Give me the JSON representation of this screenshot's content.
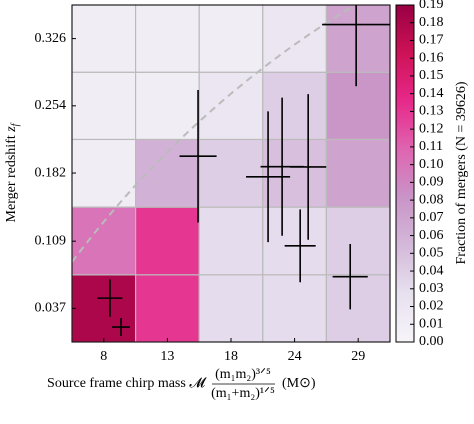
{
  "chart_data": {
    "type": "heatmap",
    "xlabel": "Source frame chirp mass 𝓜",
    "xlabel_numerator": "(m₁m₂)³ᐟ⁵",
    "xlabel_denominator": "(m₁+m₂)¹ᐟ⁵",
    "xlabel_unit": "(M⊙)",
    "ylabel": "Merger redshift",
    "ylabel_symbol": "z",
    "ylabel_subscript": "f",
    "colorbar_label": "Fraction of mergers (N = 39626)",
    "xbins": [
      5.125,
      10.375,
      15.625,
      20.875,
      26.125,
      31.375
    ],
    "ybins": [
      0.001,
      0.073,
      0.1455,
      0.218,
      0.29,
      0.362
    ],
    "xlim": [
      5.125,
      31.375
    ],
    "ylim": [
      0.001,
      0.362
    ],
    "xticks": [
      {
        "value": 7.75,
        "label": "8"
      },
      13,
      {
        "value": 18.25,
        "label": "18"
      },
      {
        "value": 23.5,
        "label": "24"
      },
      {
        "value": 28.75,
        "label": "29"
      }
    ],
    "yticks": [
      0.037,
      0.109,
      0.182,
      0.254,
      0.326
    ],
    "z": [
      [
        0.18,
        0.13,
        0.03,
        0.03,
        0.04
      ],
      [
        0.1,
        0.13,
        0.03,
        0.03,
        0.04
      ],
      [
        0.01,
        0.06,
        0.04,
        0.05,
        0.07
      ],
      [
        0.01,
        0.01,
        0.02,
        0.04,
        0.08
      ],
      [
        0.01,
        0.01,
        0.01,
        0.02,
        0.07
      ]
    ],
    "zlim": [
      0,
      0.19
    ],
    "zticks": [
      {
        "value": 0,
        "label": "0.00"
      },
      0.01,
      0.02,
      0.03,
      0.04,
      0.05,
      0.06,
      0.07,
      0.08,
      0.09,
      {
        "value": 0.1,
        "label": "0.10"
      },
      0.11,
      0.12,
      0.13,
      0.14,
      0.15,
      0.16,
      0.17,
      0.18,
      0.19
    ],
    "colorscale": [
      "#f7f4f9",
      "#e7e1ef",
      "#d4b9da",
      "#c994c7",
      "#df65b0",
      "#e7298a",
      "#ce1256",
      "#980043"
    ],
    "grid": true,
    "grid_color": "#bbbbbb",
    "points": {
      "color": "#000000",
      "x": [
        8.26,
        9.17,
        15.53,
        21.31,
        22.47,
        23.96,
        24.62,
        28.09,
        28.58
      ],
      "y": [
        0.048,
        0.017,
        0.2,
        0.178,
        0.1888,
        0.104,
        0.1885,
        0.071,
        0.341
      ],
      "xerr": [
        1.03,
        0.74,
        1.53,
        1.82,
        1.78,
        1.28,
        1.49,
        1.45,
        2.81
      ],
      "yerr": [
        0.02,
        0.0096,
        0.071,
        0.07,
        0.074,
        0.039,
        0.078,
        0.035,
        0.066
      ]
    }
  }
}
